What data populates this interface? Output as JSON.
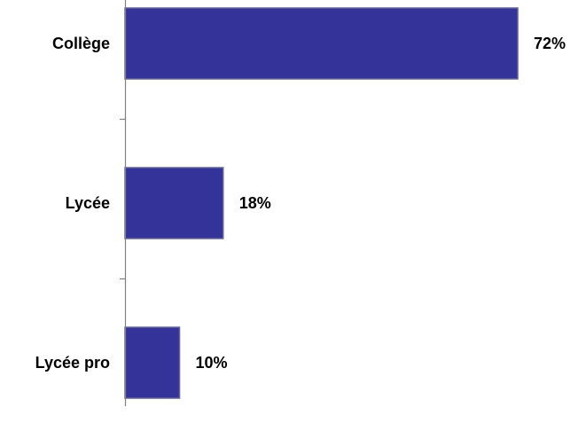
{
  "chart_data": {
    "type": "bar",
    "orientation": "horizontal",
    "categories": [
      "Collège",
      "Lycée",
      "Lycée pro"
    ],
    "values": [
      72,
      18,
      10
    ],
    "value_labels": [
      "72%",
      "18%",
      "10%"
    ],
    "xlim": [
      0,
      80
    ],
    "grid": false,
    "legend": "none",
    "bar_color": "#333399",
    "bar_border_color": "#666699"
  }
}
